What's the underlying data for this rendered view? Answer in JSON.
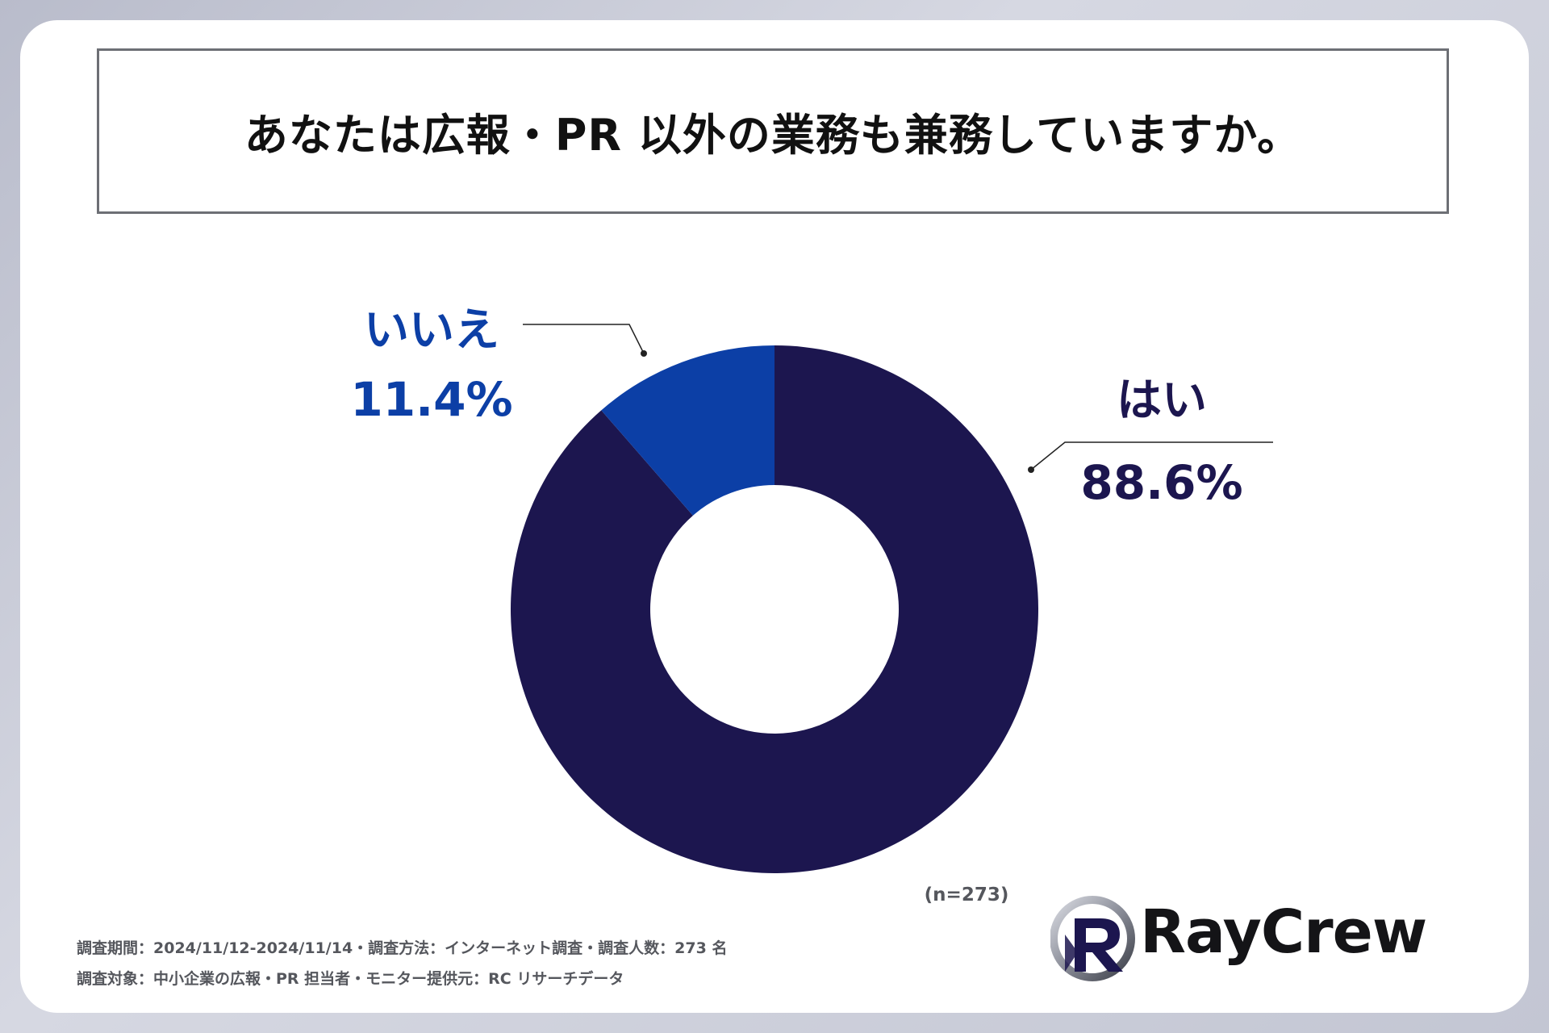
{
  "chart_data": {
    "type": "pie",
    "title": "あなたは広報・PR 以外の業務も兼務していますか。",
    "slices": [
      {
        "label": "はい",
        "value": 88.6,
        "value_label": "88.6%",
        "color": "#1c164f"
      },
      {
        "label": "いいえ",
        "value": 11.4,
        "value_label": "11.4%",
        "color": "#0c3fa6"
      }
    ],
    "sample_note": "(n=273)",
    "style": "donut"
  },
  "footer": {
    "line1": "調査期間：2024/11/12-2024/11/14・調査方法：インターネット調査・調査人数：273 名",
    "line2": "調査対象：中小企業の広報・PR 担当者・モニター提供元：RC リサーチデータ"
  },
  "logo": {
    "text": "RayCrew"
  }
}
